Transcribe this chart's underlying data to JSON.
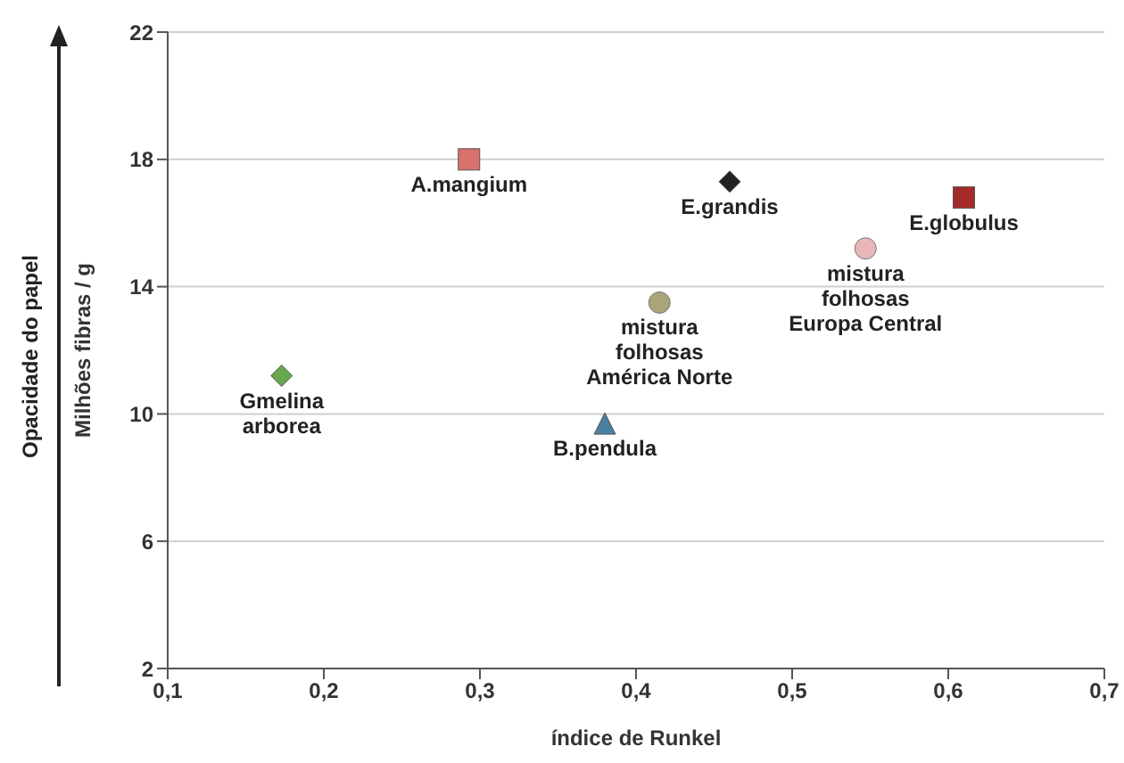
{
  "chart_data": {
    "type": "scatter",
    "xlabel": "índice de Runkel",
    "ylabel": "Milhões fibras / g",
    "annotations": [
      "Opacidade do papel"
    ],
    "xlim": [
      0.1,
      0.7
    ],
    "xticks": [
      {
        "value": 0.1,
        "label": "0,1"
      },
      {
        "value": 0.2,
        "label": "0,2"
      },
      {
        "value": 0.3,
        "label": "0,3"
      },
      {
        "value": 0.4,
        "label": "0,4"
      },
      {
        "value": 0.5,
        "label": "0,5"
      },
      {
        "value": 0.6,
        "label": "0,6"
      },
      {
        "value": 0.7,
        "label": "0,7"
      }
    ],
    "ylim": [
      2,
      22
    ],
    "yticks": [
      2,
      6,
      10,
      14,
      18,
      22
    ],
    "grid": "y",
    "legend": false,
    "series": [
      {
        "name": "Gmelina\narborea",
        "color": "#6aa84f",
        "marker": "diamond",
        "x": [
          0.173
        ],
        "values": [
          11.2
        ]
      },
      {
        "name": "A.mangium",
        "color": "#d9716f",
        "marker": "square",
        "x": [
          0.293
        ],
        "values": [
          18.0
        ]
      },
      {
        "name": "B.pendula",
        "color": "#4a7fa0",
        "marker": "triangle",
        "x": [
          0.38
        ],
        "values": [
          9.7
        ]
      },
      {
        "name": "mistura\nfolhosas\nAmérica Norte",
        "color": "#a8a57a",
        "marker": "circle",
        "x": [
          0.415
        ],
        "values": [
          13.5
        ]
      },
      {
        "name": "E.grandis",
        "color": "#222222",
        "marker": "diamond",
        "x": [
          0.46
        ],
        "values": [
          17.3
        ]
      },
      {
        "name": "mistura\nfolhosas\nEuropa Central",
        "color": "#e8b8b8",
        "marker": "circle",
        "x": [
          0.547
        ],
        "values": [
          15.2
        ]
      },
      {
        "name": "E.globulus",
        "color": "#a52a2a",
        "marker": "square",
        "x": [
          0.61
        ],
        "values": [
          16.8
        ]
      }
    ]
  }
}
